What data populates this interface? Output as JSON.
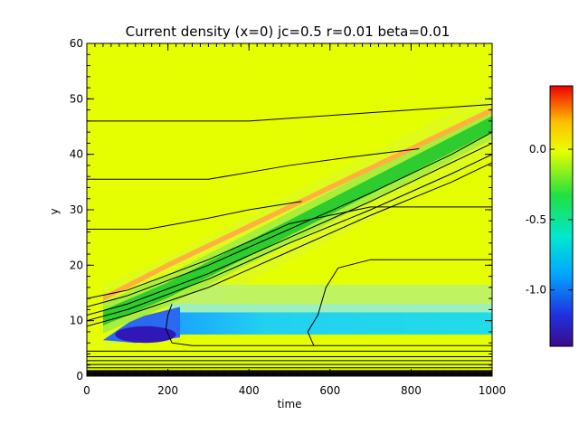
{
  "chart_data": {
    "type": "heatmap",
    "title": "Current density (x=0) jc=0.5 r=0.01 beta=0.01",
    "xlabel": "time",
    "ylabel": "y",
    "xlim": [
      0,
      1000
    ],
    "ylim": [
      0,
      60
    ],
    "x_ticks": [
      0,
      200,
      400,
      600,
      800,
      1000
    ],
    "y_ticks": [
      0,
      10,
      20,
      30,
      40,
      50,
      60
    ],
    "x_tick_labels": [
      "0",
      "200",
      "400",
      "600",
      "800",
      "1000"
    ],
    "y_tick_labels": [
      "0",
      "10",
      "20",
      "30",
      "40",
      "50",
      "60"
    ],
    "colorbar": {
      "range": [
        -1.4,
        0.45
      ],
      "ticks": [
        0.0,
        -0.5,
        -1.0
      ],
      "tick_labels": [
        "0.0",
        "-0.5",
        "-1.0"
      ],
      "colormap": "rainbow"
    },
    "colors": {
      "background": "#e6ff00",
      "band_green": "#2ecc2e",
      "band_light_green": "#a8ee3a",
      "orange_streak": "#ffb040",
      "cyan_region": "#22d8e8",
      "light_cyan": "#9cf0c0",
      "deep_blue": "#3018b8",
      "contour": "#000000"
    },
    "features": {
      "main_band": [
        [
          40,
          10.5
        ],
        [
          200,
          15.5
        ],
        [
          400,
          23
        ],
        [
          600,
          30.5
        ],
        [
          800,
          38
        ],
        [
          1000,
          45.5
        ]
      ],
      "orange_streak": [
        [
          40,
          14
        ],
        [
          200,
          20
        ],
        [
          400,
          27
        ],
        [
          600,
          34
        ],
        [
          800,
          41
        ],
        [
          1000,
          48
        ]
      ],
      "cyan_region": {
        "x": [
          200,
          1000
        ],
        "y": [
          7.5,
          11.5
        ]
      },
      "deep_blue_core": {
        "x": [
          50,
          200
        ],
        "y": [
          6,
          9
        ]
      }
    },
    "contours": [
      [
        [
          0,
          46
        ],
        [
          400,
          46
        ],
        [
          700,
          47.5
        ],
        [
          1000,
          49
        ]
      ],
      [
        [
          0,
          35.5
        ],
        [
          300,
          35.5
        ],
        [
          500,
          38
        ],
        [
          650,
          39.5
        ],
        [
          820,
          41
        ]
      ],
      [
        [
          0,
          26.5
        ],
        [
          150,
          26.5
        ],
        [
          300,
          28.5
        ],
        [
          400,
          30
        ],
        [
          530,
          31.5
        ]
      ],
      [
        [
          0,
          12.5
        ],
        [
          100,
          14.5
        ],
        [
          300,
          20
        ],
        [
          500,
          26.5
        ],
        [
          700,
          33
        ],
        [
          900,
          40
        ],
        [
          1000,
          44
        ]
      ],
      [
        [
          0,
          11
        ],
        [
          100,
          13
        ],
        [
          300,
          18.5
        ],
        [
          500,
          25
        ],
        [
          700,
          31.5
        ],
        [
          900,
          38.5
        ],
        [
          1000,
          42
        ]
      ],
      [
        [
          0,
          10
        ],
        [
          100,
          12
        ],
        [
          300,
          17.5
        ],
        [
          500,
          24
        ],
        [
          700,
          30
        ],
        [
          900,
          36.5
        ],
        [
          1000,
          40
        ]
      ],
      [
        [
          0,
          9
        ],
        [
          100,
          11
        ],
        [
          300,
          16
        ],
        [
          500,
          22.5
        ],
        [
          700,
          29
        ],
        [
          900,
          35
        ],
        [
          1000,
          38.5
        ]
      ],
      [
        [
          0,
          14
        ],
        [
          100,
          15.5
        ],
        [
          300,
          21
        ],
        [
          500,
          27.5
        ],
        [
          700,
          30.5
        ],
        [
          1000,
          30.5
        ]
      ],
      [
        [
          210,
          13
        ],
        [
          200,
          11
        ],
        [
          195,
          8.5
        ],
        [
          210,
          6
        ],
        [
          260,
          5.5
        ],
        [
          560,
          5.5
        ],
        [
          1000,
          5.5
        ]
      ],
      [
        [
          560,
          5.5
        ],
        [
          545,
          8
        ],
        [
          570,
          11
        ],
        [
          590,
          16
        ],
        [
          620,
          19.5
        ],
        [
          700,
          21
        ],
        [
          1000,
          21
        ]
      ],
      [
        [
          0,
          4.5
        ],
        [
          1000,
          4.5
        ]
      ],
      [
        [
          0,
          3.5
        ],
        [
          1000,
          3.5
        ]
      ],
      [
        [
          0,
          2.8
        ],
        [
          1000,
          2.8
        ]
      ],
      [
        [
          0,
          2.1
        ],
        [
          1000,
          2.1
        ]
      ],
      [
        [
          0,
          1.5
        ],
        [
          1000,
          1.5
        ]
      ],
      [
        [
          0,
          1.0
        ],
        [
          1000,
          1.0
        ]
      ],
      [
        [
          0,
          0.6
        ],
        [
          1000,
          0.6
        ]
      ],
      [
        [
          0,
          0.25
        ],
        [
          1000,
          0.25
        ]
      ]
    ]
  }
}
